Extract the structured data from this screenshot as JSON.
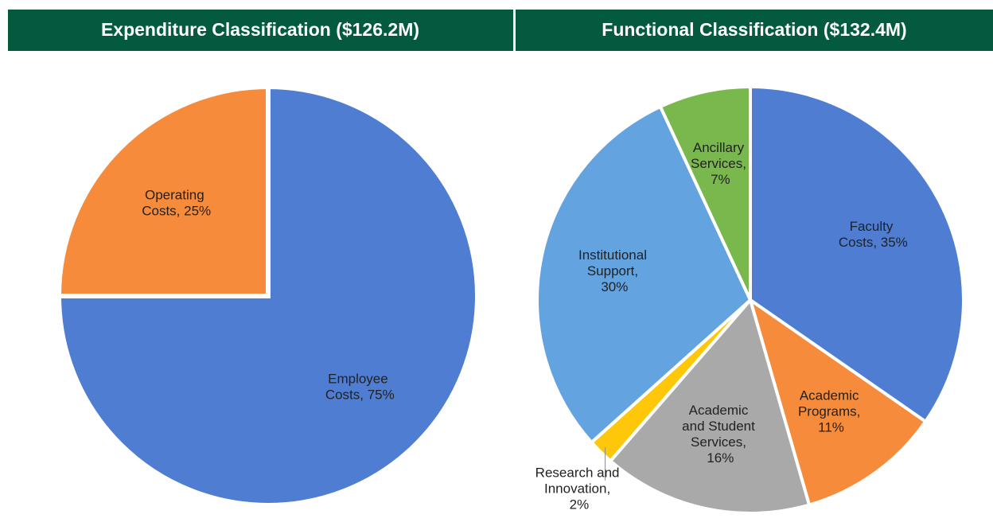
{
  "chart_data": [
    {
      "type": "pie",
      "title": "Expenditure Classification ($126.2M)",
      "values": [
        75,
        25
      ],
      "value_labels": [
        "Employee Costs, 75%",
        "Operating Costs, 25%"
      ],
      "colors": [
        "#4e7dd2",
        "#f58b3b"
      ]
    },
    {
      "type": "pie",
      "title": "Functional Classification ($132.4M)",
      "values": [
        35,
        11,
        16,
        2,
        30,
        7
      ],
      "value_labels": [
        "Faculty Costs, 35%",
        "Academic Programs, 11%",
        "Academic and Student Services, 16%",
        "Research and Innovation, 2%",
        "Institutional Support, 30%",
        "Ancillary Services, 7%"
      ],
      "colors": [
        "#4e7dd2",
        "#f58b3b",
        "#a9a9a9",
        "#ffc70a",
        "#62a3e0",
        "#79b84c"
      ]
    }
  ]
}
